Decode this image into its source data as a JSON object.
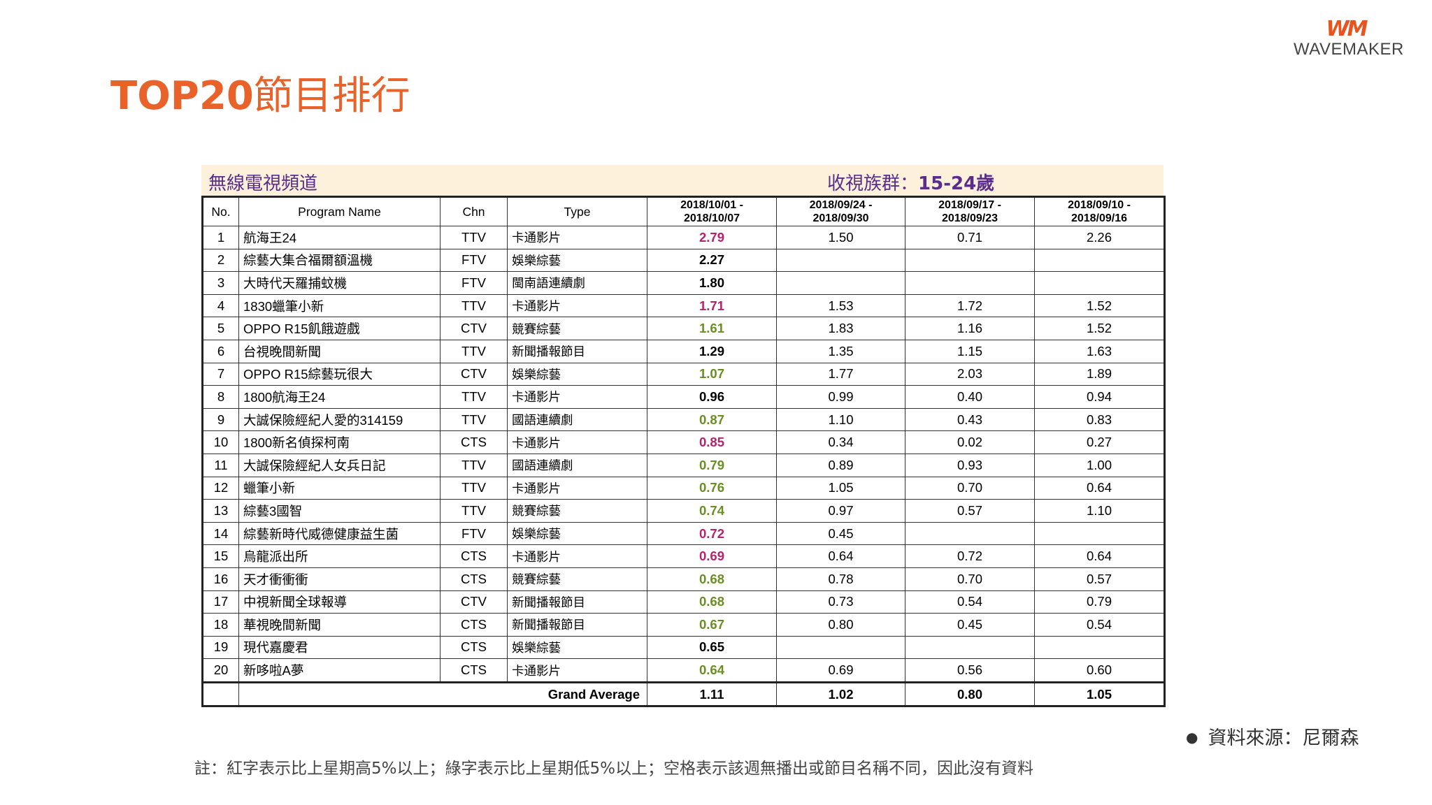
{
  "brand": {
    "mark": "WM",
    "name": "WAVEMAKER"
  },
  "title": {
    "latin": "TOP20",
    "cjk": "節目排行"
  },
  "table": {
    "channel_label": "無線電視頻道",
    "group_label": "收視族群：",
    "group_value": "15-24歲",
    "headers": {
      "no": "No.",
      "program": "Program Name",
      "chn": "Chn",
      "type": "Type",
      "w1_a": "2018/10/01 -",
      "w1_b": "2018/10/07",
      "w2_a": "2018/09/24 -",
      "w2_b": "2018/09/30",
      "w3_a": "2018/09/17 -",
      "w3_b": "2018/09/23",
      "w4_a": "2018/09/10 -",
      "w4_b": "2018/09/16"
    },
    "rows": [
      {
        "no": "1",
        "name": "航海王24",
        "chn": "TTV",
        "type": "卡通影片",
        "cur": "2.79",
        "cur_color": "red",
        "w2": "1.50",
        "w3": "0.71",
        "w4": "2.26"
      },
      {
        "no": "2",
        "name": "綜藝大集合福爾額溫機",
        "chn": "FTV",
        "type": "娛樂綜藝",
        "cur": "2.27",
        "cur_color": "black",
        "w2": "",
        "w3": "",
        "w4": ""
      },
      {
        "no": "3",
        "name": "大時代天羅捕蚊機",
        "chn": "FTV",
        "type": "閩南語連續劇",
        "cur": "1.80",
        "cur_color": "black",
        "w2": "",
        "w3": "",
        "w4": ""
      },
      {
        "no": "4",
        "name": "1830蠟筆小新",
        "chn": "TTV",
        "type": "卡通影片",
        "cur": "1.71",
        "cur_color": "red",
        "w2": "1.53",
        "w3": "1.72",
        "w4": "1.52"
      },
      {
        "no": "5",
        "name": "OPPO R15飢餓遊戲",
        "chn": "CTV",
        "type": "競賽綜藝",
        "cur": "1.61",
        "cur_color": "green",
        "w2": "1.83",
        "w3": "1.16",
        "w4": "1.52"
      },
      {
        "no": "6",
        "name": "台視晚間新聞",
        "chn": "TTV",
        "type": "新聞播報節目",
        "cur": "1.29",
        "cur_color": "black",
        "w2": "1.35",
        "w3": "1.15",
        "w4": "1.63"
      },
      {
        "no": "7",
        "name": "OPPO R15綜藝玩很大",
        "chn": "CTV",
        "type": "娛樂綜藝",
        "cur": "1.07",
        "cur_color": "green",
        "w2": "1.77",
        "w3": "2.03",
        "w4": "1.89"
      },
      {
        "no": "8",
        "name": "1800航海王24",
        "chn": "TTV",
        "type": "卡通影片",
        "cur": "0.96",
        "cur_color": "black",
        "w2": "0.99",
        "w3": "0.40",
        "w4": "0.94"
      },
      {
        "no": "9",
        "name": "大誠保險經紀人愛的314159",
        "chn": "TTV",
        "type": "國語連續劇",
        "cur": "0.87",
        "cur_color": "green",
        "w2": "1.10",
        "w3": "0.43",
        "w4": "0.83"
      },
      {
        "no": "10",
        "name": "1800新名偵探柯南",
        "chn": "CTS",
        "type": "卡通影片",
        "cur": "0.85",
        "cur_color": "red",
        "w2": "0.34",
        "w3": "0.02",
        "w4": "0.27"
      },
      {
        "no": "11",
        "name": "大誠保險經紀人女兵日記",
        "chn": "TTV",
        "type": "國語連續劇",
        "cur": "0.79",
        "cur_color": "green",
        "w2": "0.89",
        "w3": "0.93",
        "w4": "1.00"
      },
      {
        "no": "12",
        "name": "蠟筆小新",
        "chn": "TTV",
        "type": "卡通影片",
        "cur": "0.76",
        "cur_color": "green",
        "w2": "1.05",
        "w3": "0.70",
        "w4": "0.64"
      },
      {
        "no": "13",
        "name": "綜藝3國智",
        "chn": "TTV",
        "type": "競賽綜藝",
        "cur": "0.74",
        "cur_color": "green",
        "w2": "0.97",
        "w3": "0.57",
        "w4": "1.10"
      },
      {
        "no": "14",
        "name": "綜藝新時代威德健康益生菌",
        "chn": "FTV",
        "type": "娛樂綜藝",
        "cur": "0.72",
        "cur_color": "red",
        "w2": "0.45",
        "w3": "",
        "w4": ""
      },
      {
        "no": "15",
        "name": "烏龍派出所",
        "chn": "CTS",
        "type": "卡通影片",
        "cur": "0.69",
        "cur_color": "red",
        "w2": "0.64",
        "w3": "0.72",
        "w4": "0.64"
      },
      {
        "no": "16",
        "name": "天才衝衝衝",
        "chn": "CTS",
        "type": "競賽綜藝",
        "cur": "0.68",
        "cur_color": "green",
        "w2": "0.78",
        "w3": "0.70",
        "w4": "0.57"
      },
      {
        "no": "17",
        "name": "中視新聞全球報導",
        "chn": "CTV",
        "type": "新聞播報節目",
        "cur": "0.68",
        "cur_color": "green",
        "w2": "0.73",
        "w3": "0.54",
        "w4": "0.79"
      },
      {
        "no": "18",
        "name": "華視晚間新聞",
        "chn": "CTS",
        "type": "新聞播報節目",
        "cur": "0.67",
        "cur_color": "green",
        "w2": "0.80",
        "w3": "0.45",
        "w4": "0.54"
      },
      {
        "no": "19",
        "name": "現代嘉慶君",
        "chn": "CTS",
        "type": "娛樂綜藝",
        "cur": "0.65",
        "cur_color": "black",
        "w2": "",
        "w3": "",
        "w4": ""
      },
      {
        "no": "20",
        "name": "新哆啦A夢",
        "chn": "CTS",
        "type": "卡通影片",
        "cur": "0.64",
        "cur_color": "green",
        "w2": "0.69",
        "w3": "0.56",
        "w4": "0.60"
      }
    ],
    "average": {
      "label": "Grand Average",
      "cur": "1.11",
      "w2": "1.02",
      "w3": "0.80",
      "w4": "1.05"
    }
  },
  "source": "資料來源：尼爾森",
  "note": "註：紅字表示比上星期高5%以上；綠字表示比上星期低5%以上；空格表示該週無播出或節目名稱不同，因此沒有資料",
  "colors": {
    "title": "#e8622a",
    "increase": "#b3246e",
    "decrease": "#6b8e23",
    "header_text": "#5a2d8c",
    "header_bg": "#fdf1dc"
  }
}
